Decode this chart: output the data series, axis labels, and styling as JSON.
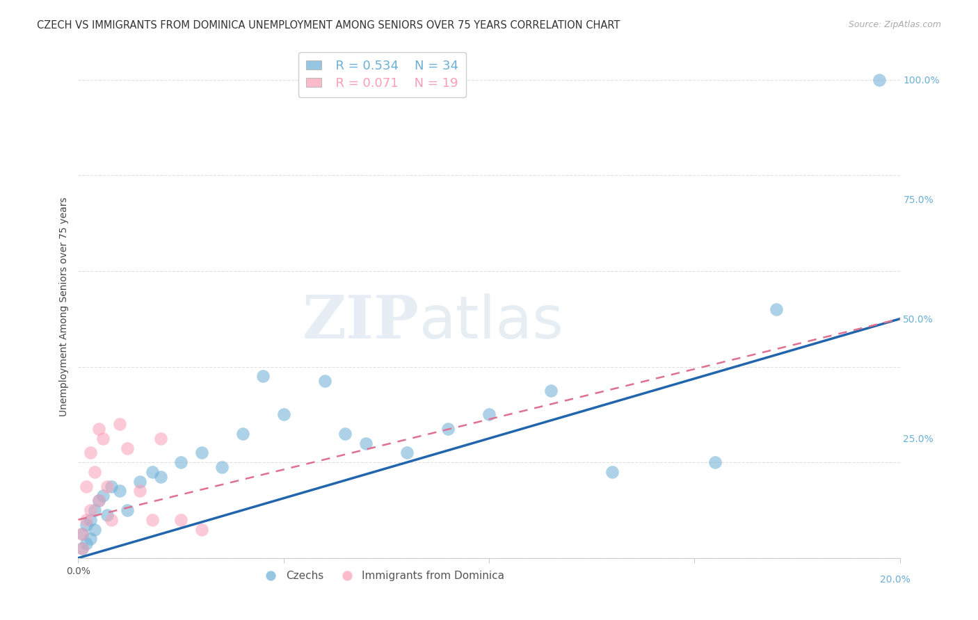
{
  "title": "CZECH VS IMMIGRANTS FROM DOMINICA UNEMPLOYMENT AMONG SENIORS OVER 75 YEARS CORRELATION CHART",
  "source": "Source: ZipAtlas.com",
  "ylabel": "Unemployment Among Seniors over 75 years",
  "xlim": [
    0,
    0.2
  ],
  "ylim": [
    0,
    1.05
  ],
  "czech_color": "#6baed6",
  "dominica_color": "#fa9fb5",
  "czech_line_color": "#2166ac",
  "dominica_line_color": "#e07090",
  "czech_R": 0.534,
  "czech_N": 34,
  "dominica_R": 0.071,
  "dominica_N": 19,
  "czech_x": [
    0.001,
    0.001,
    0.002,
    0.002,
    0.003,
    0.003,
    0.004,
    0.004,
    0.005,
    0.006,
    0.007,
    0.008,
    0.01,
    0.012,
    0.015,
    0.018,
    0.02,
    0.025,
    0.03,
    0.035,
    0.04,
    0.045,
    0.05,
    0.06,
    0.065,
    0.07,
    0.08,
    0.09,
    0.1,
    0.115,
    0.13,
    0.155,
    0.17,
    0.195
  ],
  "czech_y": [
    0.02,
    0.05,
    0.03,
    0.07,
    0.04,
    0.08,
    0.06,
    0.1,
    0.12,
    0.13,
    0.09,
    0.15,
    0.14,
    0.1,
    0.16,
    0.18,
    0.17,
    0.2,
    0.22,
    0.19,
    0.26,
    0.38,
    0.3,
    0.37,
    0.26,
    0.24,
    0.22,
    0.27,
    0.3,
    0.35,
    0.18,
    0.2,
    0.52,
    1.0
  ],
  "dominica_x": [
    0.001,
    0.001,
    0.002,
    0.002,
    0.003,
    0.003,
    0.004,
    0.005,
    0.005,
    0.006,
    0.007,
    0.008,
    0.01,
    0.012,
    0.015,
    0.018,
    0.02,
    0.025,
    0.03
  ],
  "dominica_y": [
    0.02,
    0.05,
    0.08,
    0.15,
    0.1,
    0.22,
    0.18,
    0.12,
    0.27,
    0.25,
    0.15,
    0.08,
    0.28,
    0.23,
    0.14,
    0.08,
    0.25,
    0.08,
    0.06
  ],
  "czech_trend_x0": 0.0,
  "czech_trend_y0": 0.0,
  "czech_trend_x1": 0.2,
  "czech_trend_y1": 0.5,
  "dominica_trend_x0": 0.0,
  "dominica_trend_y0": 0.08,
  "dominica_trend_x1": 0.2,
  "dominica_trend_y1": 0.5,
  "watermark_zip": "ZIP",
  "watermark_atlas": "atlas",
  "background_color": "#ffffff",
  "grid_color": "#dddddd",
  "right_axis_color": "#6baed6"
}
